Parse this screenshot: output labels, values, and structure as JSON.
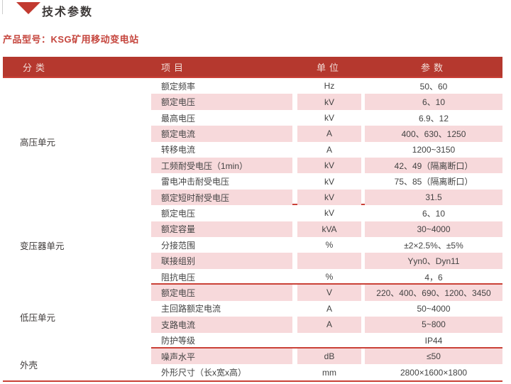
{
  "page": {
    "title": "技术参数",
    "product_label": "产品型号：KSG矿用移动变电站"
  },
  "colors": {
    "header_bg": "#b5382e",
    "row_pink": "#f7d9db",
    "line_red": "#ca4137",
    "accent_red": "#c23a30"
  },
  "table": {
    "headers": {
      "category": "分类",
      "item": "项目",
      "unit": "单位",
      "param": "参数"
    },
    "sections": [
      {
        "category": "高压单元",
        "rows": [
          {
            "item": "额定频率",
            "unit": "Hz",
            "value": "50、60"
          },
          {
            "item": "额定电压",
            "unit": "kV",
            "value": "6、10"
          },
          {
            "item": "最高电压",
            "unit": "kV",
            "value": "6.9、12"
          },
          {
            "item": "额定电流",
            "unit": "A",
            "value": "400、630、1250"
          },
          {
            "item": "转移电流",
            "unit": "A",
            "value": "1200~3150"
          },
          {
            "item": "工频耐受电压（1min）",
            "unit": "kV",
            "value": "42、49（隔离断口）"
          },
          {
            "item": "雷电冲击耐受电压",
            "unit": "kV",
            "value": "75、85（隔离断口）"
          },
          {
            "item": "额定短时耐受电压",
            "unit": "kV",
            "value": "31.5"
          }
        ]
      },
      {
        "category": "变压器单元",
        "rows": [
          {
            "item": "额定电压",
            "unit": "kV",
            "value": "6、10"
          },
          {
            "item": "额定容量",
            "unit": "kVA",
            "value": "30~4000"
          },
          {
            "item": "分接范围",
            "unit": "%",
            "value": "±2×2.5%、±5%"
          },
          {
            "item": "联接组别",
            "unit": "",
            "value": "Yyn0、Dyn11"
          },
          {
            "item": "阻抗电压",
            "unit": "%",
            "value": "4，6"
          }
        ]
      },
      {
        "category": "低压单元",
        "rows": [
          {
            "item": "额定电压",
            "unit": "V",
            "value": "220、400、690、1200、3450"
          },
          {
            "item": "主回路额定电流",
            "unit": "A",
            "value": "50~4000"
          },
          {
            "item": "支路电流",
            "unit": "A",
            "value": "5~800"
          },
          {
            "item": "防护等级",
            "unit": "",
            "value": "IP44"
          }
        ]
      },
      {
        "category": "外壳",
        "rows": [
          {
            "item": "噪声水平",
            "unit": "dB",
            "value": "≤50"
          },
          {
            "item": "外形尺寸（长x宽x高）",
            "unit": "mm",
            "value": "2800×1600×1800"
          }
        ]
      }
    ]
  }
}
